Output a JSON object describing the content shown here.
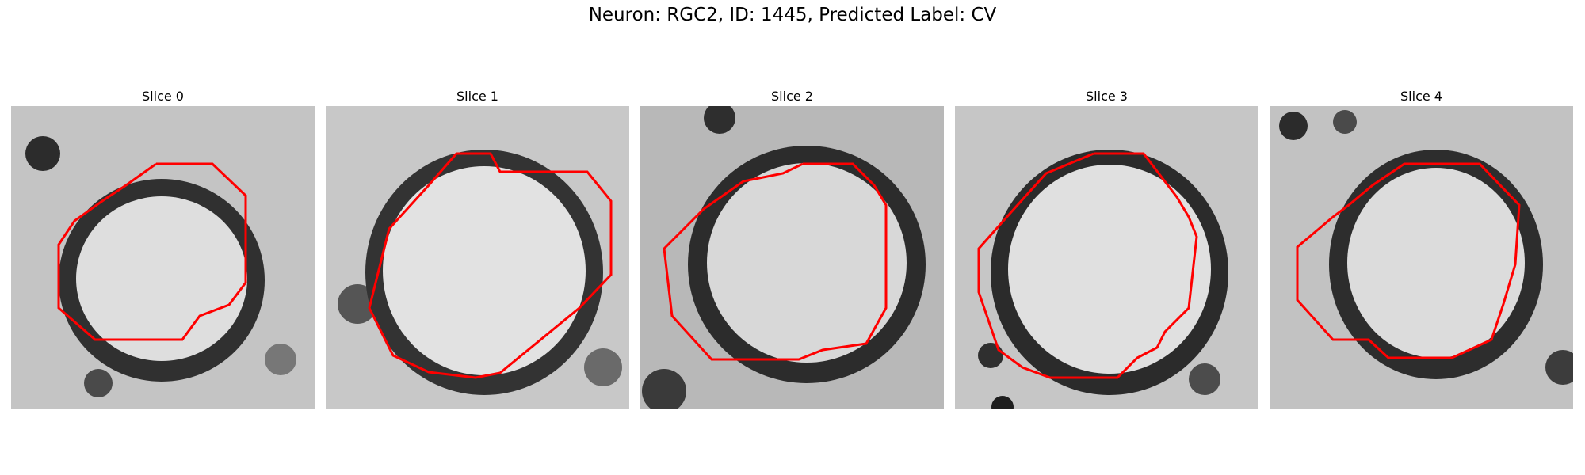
{
  "figure": {
    "title": "Neuron: RGC2, ID: 1445, Predicted Label: CV"
  },
  "panels": [
    {
      "title": "Slice 0"
    },
    {
      "title": "Slice 1"
    },
    {
      "title": "Slice 2"
    },
    {
      "title": "Slice 3"
    },
    {
      "title": "Slice 4"
    }
  ],
  "colors": {
    "contour": "#ff0000",
    "membrane": "#2a2a2a",
    "interior": "#dcdcdc",
    "background": "#bcbcbc"
  }
}
